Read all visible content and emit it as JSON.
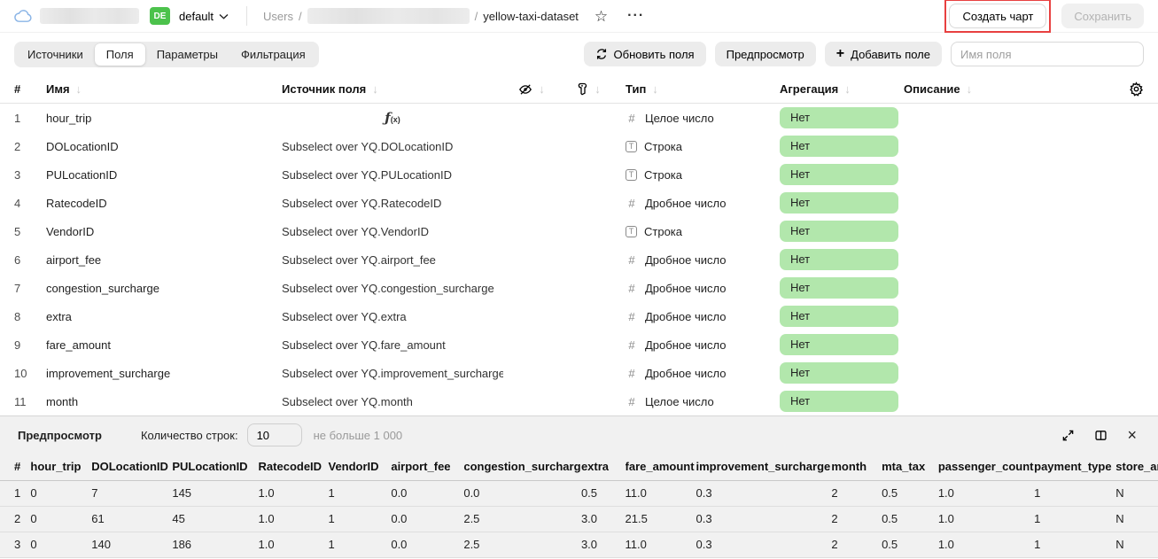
{
  "colors": {
    "badge-green": "#4cc24c",
    "pill-green": "#b2e7ac",
    "annotation-red": "#e84040"
  },
  "header": {
    "folder_badge": "DE",
    "folder_name": "default",
    "breadcrumb_root": "Users",
    "breadcrumb_separator": "/",
    "dataset_name": "yellow-taxi-dataset",
    "more_label": "···",
    "star_icon": "☆",
    "create_chart_label": "Создать чарт",
    "save_label": "Сохранить"
  },
  "toolbar": {
    "tabs": [
      "Источники",
      "Поля",
      "Параметры",
      "Фильтрация"
    ],
    "active_tab": "Поля",
    "refresh_fields_label": "Обновить поля",
    "preview_label": "Предпросмотр",
    "add_field_label": "Добавить поле",
    "add_field_plus": "+",
    "field_name_placeholder": "Имя поля"
  },
  "fields_table": {
    "headers": {
      "index": "#",
      "name": "Имя",
      "source": "Источник поля",
      "type": "Тип",
      "aggregation": "Агрегация",
      "description": "Описание"
    },
    "sort_arrow": "↓",
    "rows": [
      {
        "n": "1",
        "name": "hour_trip",
        "source": "",
        "formula": true,
        "kind": "integer",
        "type": "Целое число",
        "aggregation": "Нет",
        "description": ""
      },
      {
        "n": "2",
        "name": "DOLocationID",
        "source": "Subselect over YQ.DOLocationID",
        "formula": false,
        "kind": "string",
        "type": "Строка",
        "aggregation": "Нет",
        "description": ""
      },
      {
        "n": "3",
        "name": "PULocationID",
        "source": "Subselect over YQ.PULocationID",
        "formula": false,
        "kind": "string",
        "type": "Строка",
        "aggregation": "Нет",
        "description": ""
      },
      {
        "n": "4",
        "name": "RatecodeID",
        "source": "Subselect over YQ.RatecodeID",
        "formula": false,
        "kind": "float",
        "type": "Дробное число",
        "aggregation": "Нет",
        "description": ""
      },
      {
        "n": "5",
        "name": "VendorID",
        "source": "Subselect over YQ.VendorID",
        "formula": false,
        "kind": "string",
        "type": "Строка",
        "aggregation": "Нет",
        "description": ""
      },
      {
        "n": "6",
        "name": "airport_fee",
        "source": "Subselect over YQ.airport_fee",
        "formula": false,
        "kind": "float",
        "type": "Дробное число",
        "aggregation": "Нет",
        "description": ""
      },
      {
        "n": "7",
        "name": "congestion_surcharge",
        "source": "Subselect over YQ.congestion_surcharge",
        "formula": false,
        "kind": "float",
        "type": "Дробное число",
        "aggregation": "Нет",
        "description": ""
      },
      {
        "n": "8",
        "name": "extra",
        "source": "Subselect over YQ.extra",
        "formula": false,
        "kind": "float",
        "type": "Дробное число",
        "aggregation": "Нет",
        "description": ""
      },
      {
        "n": "9",
        "name": "fare_amount",
        "source": "Subselect over YQ.fare_amount",
        "formula": false,
        "kind": "float",
        "type": "Дробное число",
        "aggregation": "Нет",
        "description": ""
      },
      {
        "n": "10",
        "name": "improvement_surcharge",
        "source": "Subselect over YQ.improvement_surcharge",
        "formula": false,
        "kind": "float",
        "type": "Дробное число",
        "aggregation": "Нет",
        "description": ""
      },
      {
        "n": "11",
        "name": "month",
        "source": "Subselect over YQ.month",
        "formula": false,
        "kind": "integer",
        "type": "Целое число",
        "aggregation": "Нет",
        "description": ""
      }
    ]
  },
  "preview": {
    "title": "Предпросмотр",
    "row_count_label": "Количество строк:",
    "row_count_value": "10",
    "row_count_hint": "не больше 1 000",
    "table": {
      "columns": [
        "#",
        "hour_trip",
        "DOLocationID",
        "PULocationID",
        "RatecodeID",
        "VendorID",
        "airport_fee",
        "congestion_surcharge",
        "extra",
        "fare_amount",
        "improvement_surcharge",
        "month",
        "mta_tax",
        "passenger_count",
        "payment_type",
        "store_an"
      ],
      "rows": [
        [
          "1",
          "0",
          "7",
          "145",
          "1.0",
          "1",
          "0.0",
          "0.0",
          "0.5",
          "11.0",
          "0.3",
          "2",
          "0.5",
          "1.0",
          "1",
          "N"
        ],
        [
          "2",
          "0",
          "61",
          "45",
          "1.0",
          "1",
          "0.0",
          "2.5",
          "3.0",
          "21.5",
          "0.3",
          "2",
          "0.5",
          "1.0",
          "1",
          "N"
        ],
        [
          "3",
          "0",
          "140",
          "186",
          "1.0",
          "1",
          "0.0",
          "2.5",
          "3.0",
          "11.0",
          "0.3",
          "2",
          "0.5",
          "1.0",
          "1",
          "N"
        ]
      ]
    }
  }
}
